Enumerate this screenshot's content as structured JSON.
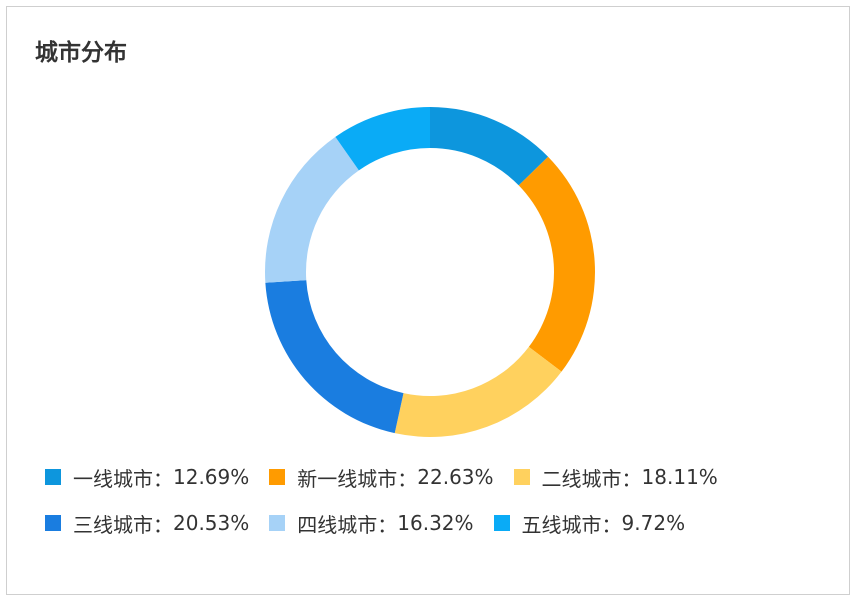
{
  "chart_data": {
    "type": "donut",
    "title": "城市分布",
    "categories": [
      "一线城市：",
      "新一线城市：",
      "二线城市：",
      "三线城市：",
      "四线城市：",
      "五线城市："
    ],
    "values": [
      12.69,
      22.63,
      18.11,
      20.53,
      16.32,
      9.72
    ],
    "value_labels": [
      "12.69%",
      "22.63%",
      "18.11%",
      "20.53%",
      "16.32%",
      "9.72%"
    ],
    "colors": [
      "#0d96dd",
      "#ff9b00",
      "#ffd15e",
      "#1a7de0",
      "#a6d2f7",
      "#0aabf6"
    ],
    "legend": "bottom"
  }
}
